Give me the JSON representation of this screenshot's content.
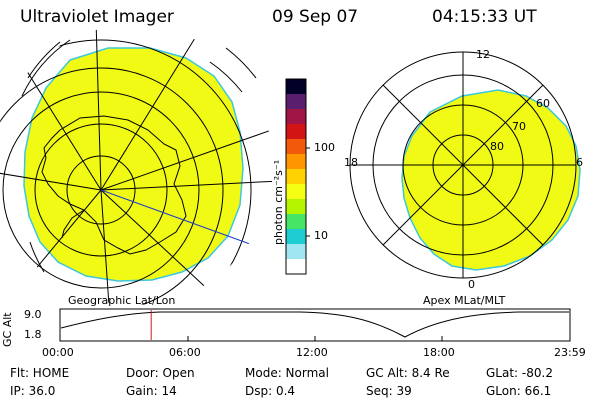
{
  "header": {
    "instrument": "Ultraviolet Imager",
    "date": "09 Sep 07",
    "time": "04:15:33 UT"
  },
  "colorbar": {
    "unit_label": "photon cm⁻²s⁻¹",
    "ticks": [
      "100",
      "10"
    ],
    "scale": "log",
    "colors": [
      "#000028",
      "#5a1e6e",
      "#a01446",
      "#d21414",
      "#f05a0a",
      "#ff9600",
      "#ffd200",
      "#f5ff14",
      "#b4f500",
      "#46e664",
      "#1ecdd2",
      "#a0e6f0",
      "#ffffff"
    ]
  },
  "geo_panel": {
    "caption": "Geographic Lat/Lon",
    "fill_color": "#f0fa14"
  },
  "apex_panel": {
    "caption": "Apex MLat/MLT",
    "mlt_labels": {
      "top": "12",
      "left": "18",
      "right": "6",
      "bottom": "0"
    },
    "lat_labels": [
      "60",
      "70",
      "80"
    ],
    "fill_color": "#f0fa14"
  },
  "altitude_plot": {
    "ylabel": "GC Alt",
    "yticks": [
      "9.0",
      "1.8"
    ],
    "xticks": [
      "00:00",
      "06:00",
      "12:00",
      "18:00",
      "23:59"
    ],
    "marker_hour": 4.26,
    "marker_color": "#d21414"
  },
  "info": {
    "flt": "Flt: HOME",
    "door": "Door: Open",
    "mode": "Mode: Normal",
    "gc_alt": "GC Alt: 8.4 Re",
    "glat": "GLat: -80.2",
    "ip": "IP: 36.0",
    "gain": "Gain: 14",
    "dsp": "Dsp:     0.4",
    "seq": "Seq: 39",
    "glon": "GLon:  66.1"
  }
}
